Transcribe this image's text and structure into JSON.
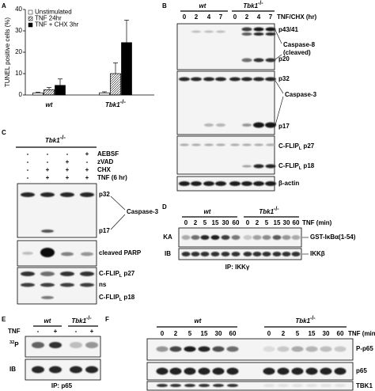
{
  "chart_data": {
    "type": "bar",
    "panel_label": "A",
    "ylabel": "TUNEL positive cells (%)",
    "categories": [
      {
        "main": "wt"
      },
      {
        "main": "Tbk1",
        "sup": "-/-"
      }
    ],
    "series": [
      {
        "name": "Unstimulated",
        "color": "#ffffff",
        "values": [
          1,
          1
        ],
        "errors": [
          0.3,
          0.5
        ]
      },
      {
        "name": "TNF 24hr",
        "color": "#ffffff",
        "hatch": true,
        "values": [
          2.5,
          10
        ],
        "errors": [
          1,
          5
        ]
      },
      {
        "name": "TNF + CHX 3hr",
        "color": "#000000",
        "values": [
          4.5,
          24.5
        ],
        "errors": [
          3,
          10.5
        ]
      }
    ],
    "ylim": [
      0,
      40
    ],
    "yticks": [
      0,
      10,
      20,
      30,
      40
    ]
  },
  "panels": {
    "B": {
      "label": "B",
      "groups": [
        {
          "main": "wt"
        },
        {
          "main": "Tbk1",
          "sup": "-/-"
        }
      ],
      "lanes": [
        0,
        2,
        4,
        7,
        0,
        2,
        4,
        7
      ],
      "treatment": "TNF/CHX (hr)",
      "p4341": "p43/41",
      "caspase8": [
        "Caspase-8",
        "(cleaved)"
      ],
      "p20": "p20",
      "p32": "p32",
      "caspase3": "Caspase-3",
      "p17": "p17",
      "flip27": {
        "main": "C-FLIP",
        "sub": "L",
        "suffix": " p27"
      },
      "flip18": {
        "main": "C-FLIP",
        "sub": "L",
        "suffix": " p18"
      },
      "actin": "β-actin"
    },
    "C": {
      "label": "C",
      "group": {
        "main": "Tbk1",
        "sup": "-/-"
      },
      "rows": [
        {
          "name": "AEBSF",
          "signs": [
            "-",
            "-",
            "-",
            "+"
          ]
        },
        {
          "name": "zVAD",
          "signs": [
            "-",
            "-",
            "+",
            "-"
          ]
        },
        {
          "name": "CHX",
          "signs": [
            "-",
            "+",
            "+",
            "+"
          ]
        },
        {
          "name": "TNF (6 hr)",
          "signs": [
            "-",
            "+",
            "+",
            "+"
          ]
        }
      ],
      "p32": "p32",
      "caspase3": "Caspase-3",
      "p17": "p17",
      "parp": "cleaved PARP",
      "flip27": {
        "main": "C-FLIP",
        "sub": "L",
        "suffix": " p27"
      },
      "ns": "ns",
      "flip18": {
        "main": "C-FLIP",
        "sub": "L",
        "suffix": " p18"
      }
    },
    "D": {
      "label": "D",
      "groups": [
        {
          "main": "wt"
        },
        {
          "main": "Tbk1",
          "sup": "-/-"
        }
      ],
      "lanes": [
        0,
        2,
        5,
        15,
        30,
        60,
        0,
        2,
        5,
        15,
        30,
        60
      ],
      "treatment": "TNF (min)",
      "ka": "KA",
      "ib": "IB",
      "gst": "GST-IκBα(1-54)",
      "ikkb": "IKKβ",
      "ip": "IP: IKKγ"
    },
    "E": {
      "label": "E",
      "groups": [
        {
          "main": "wt"
        },
        {
          "main": "Tbk1",
          "sup": "-/-"
        }
      ],
      "tnf": "TNF",
      "signs": [
        "-",
        "+",
        "-",
        "+"
      ],
      "p32": {
        "sup": "32",
        "main": "P"
      },
      "ib": "IB",
      "ip": "IP: p65"
    },
    "F": {
      "label": "F",
      "groups": [
        {
          "main": "wt"
        },
        {
          "main": "Tbk1",
          "sup": "-/-"
        }
      ],
      "lanes": [
        0,
        2,
        5,
        15,
        30,
        60,
        0,
        2,
        5,
        15,
        30,
        60
      ],
      "treatment": "TNF (min)",
      "pp65": "P-p65",
      "p65": "p65",
      "tbk1": "TBK1"
    }
  }
}
